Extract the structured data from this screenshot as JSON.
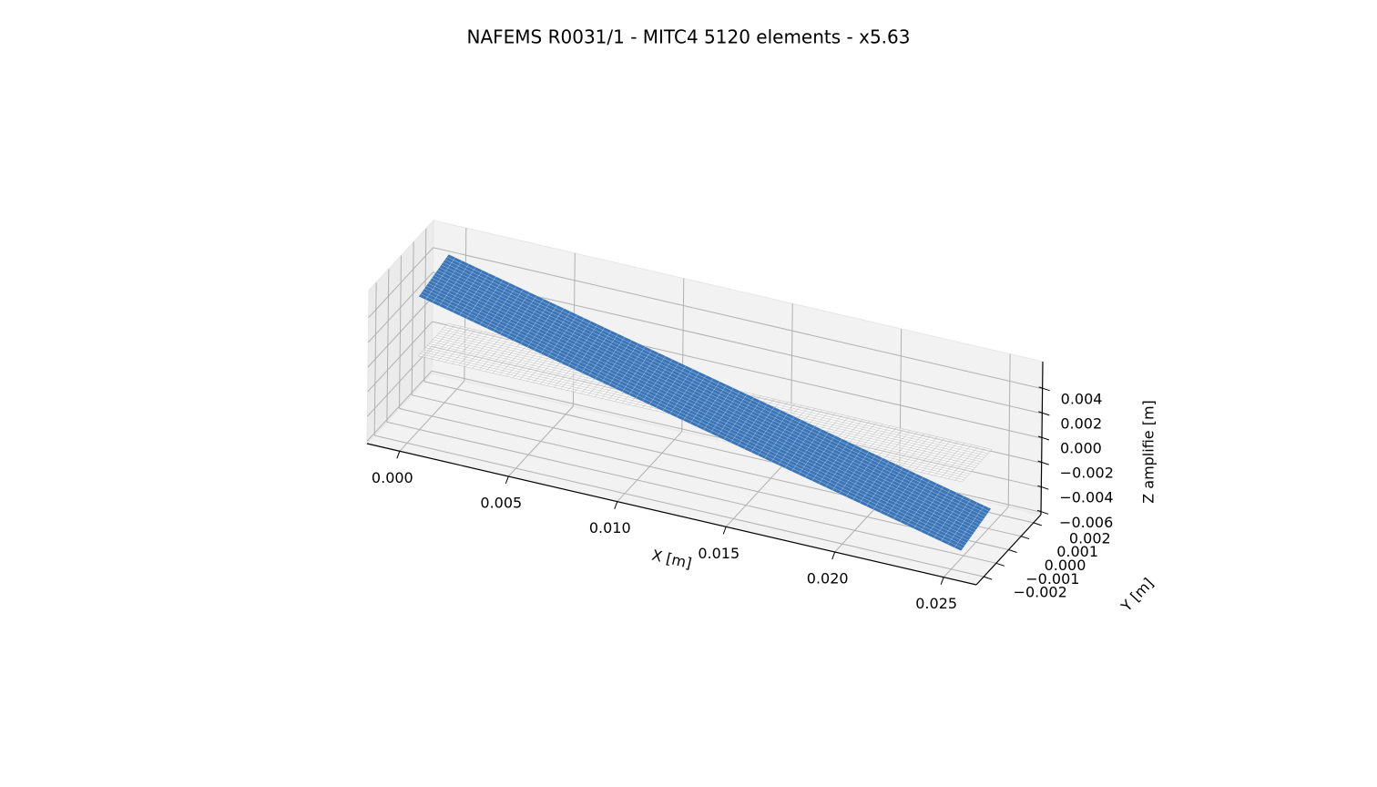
{
  "chart_data": {
    "type": "surface3d",
    "title": "NAFEMS R0031/1 - MITC4 5120 elements - x5.63",
    "xlabel": "X [m]",
    "ylabel": "Y [m]",
    "zlabel": "Z amplifie [m]",
    "xlim": [
      -0.0015,
      0.0265
    ],
    "ylim": [
      -0.0026,
      0.0026
    ],
    "zlim": [
      -0.0062,
      0.0062
    ],
    "xticks": [
      {
        "value": 0,
        "label": "0.000"
      },
      {
        "value": 0.005,
        "label": "0.005"
      },
      {
        "value": 0.01,
        "label": "0.010"
      },
      {
        "value": 0.015,
        "label": "0.015"
      },
      {
        "value": 0.02,
        "label": "0.020"
      },
      {
        "value": 0.025,
        "label": "0.025"
      }
    ],
    "yticks": [
      {
        "value": -0.002,
        "label": "−0.002"
      },
      {
        "value": -0.001,
        "label": "−0.001"
      },
      {
        "value": 0,
        "label": "0.000"
      },
      {
        "value": 0.001,
        "label": "0.001"
      },
      {
        "value": 0.002,
        "label": "0.002"
      }
    ],
    "zticks": [
      {
        "value": -0.006,
        "label": "−0.006"
      },
      {
        "value": -0.004,
        "label": "−0.004"
      },
      {
        "value": -0.002,
        "label": "−0.002"
      },
      {
        "value": 0,
        "label": "0.000"
      },
      {
        "value": 0.002,
        "label": "0.002"
      },
      {
        "value": 0.004,
        "label": "0.004"
      }
    ],
    "grid": true,
    "surfaces": [
      {
        "color": "#8c8c8c",
        "x": [
          0,
          0.025
        ],
        "y": [
          -0.0012,
          0.0012
        ],
        "z": [
          [
            0,
            0
          ],
          [
            0,
            0
          ]
        ]
      },
      {
        "color": "#3a75b8",
        "x": [
          0,
          0.025
        ],
        "y": [
          -0.0012,
          0.0012
        ],
        "z": [
          [
            0.0048,
            0.0056
          ],
          [
            -0.0056,
            -0.0048
          ]
        ]
      }
    ]
  }
}
